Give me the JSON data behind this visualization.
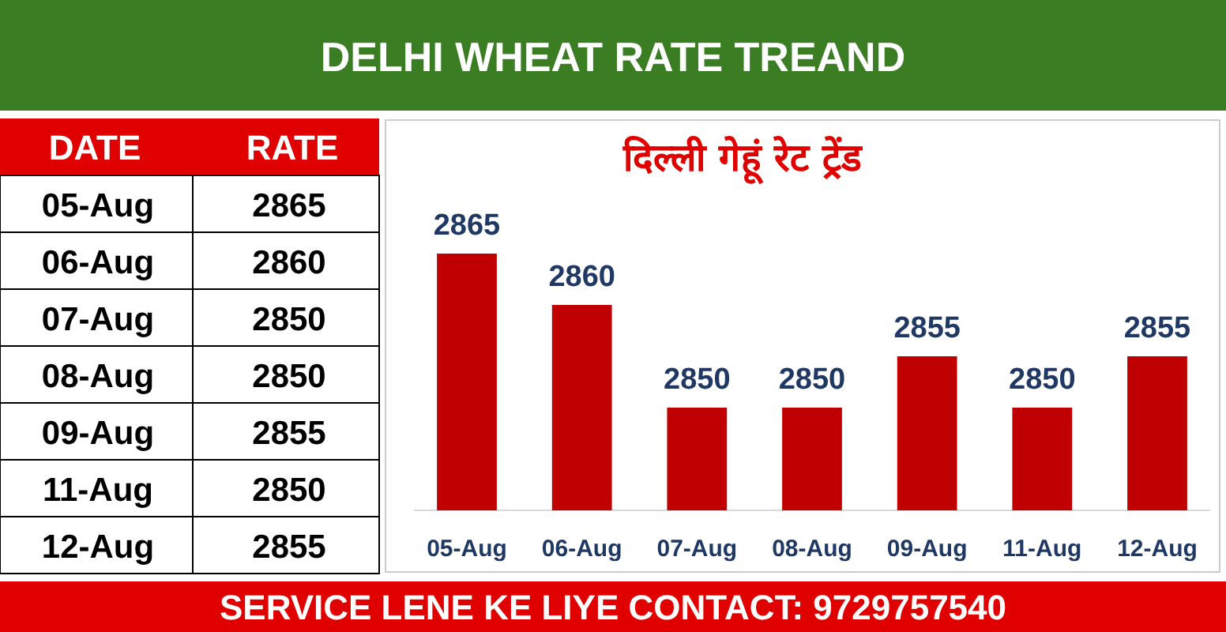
{
  "chart_data": [
    {
      "type": "other",
      "annotations": [
        "DATE",
        "RATE"
      ],
      "data_labels": true,
      "categories": [
        "05-Aug",
        "06-Aug",
        "07-Aug",
        "08-Aug",
        "09-Aug",
        "11-Aug",
        "12-Aug"
      ],
      "values": [
        2865,
        2860,
        2850,
        2850,
        2855,
        2850,
        2855
      ]
    },
    {
      "type": "bar",
      "title": "DELHI WHEAT RATE TREAND",
      "subtitle": "दिल्ली गेहूं रेट ट्रेंड",
      "categories": [
        "05-Aug",
        "06-Aug",
        "07-Aug",
        "08-Aug",
        "09-Aug",
        "11-Aug",
        "12-Aug"
      ],
      "values": [
        2865,
        2860,
        2850,
        2850,
        2855,
        2850,
        2855
      ],
      "color": "#c00000",
      "ylim": [
        2840,
        2878
      ],
      "data_labels": true,
      "tick_labels": "x",
      "annotations": [
        "SERVICE LENE KE LIYE CONTACT: 9729757540"
      ]
    }
  ]
}
